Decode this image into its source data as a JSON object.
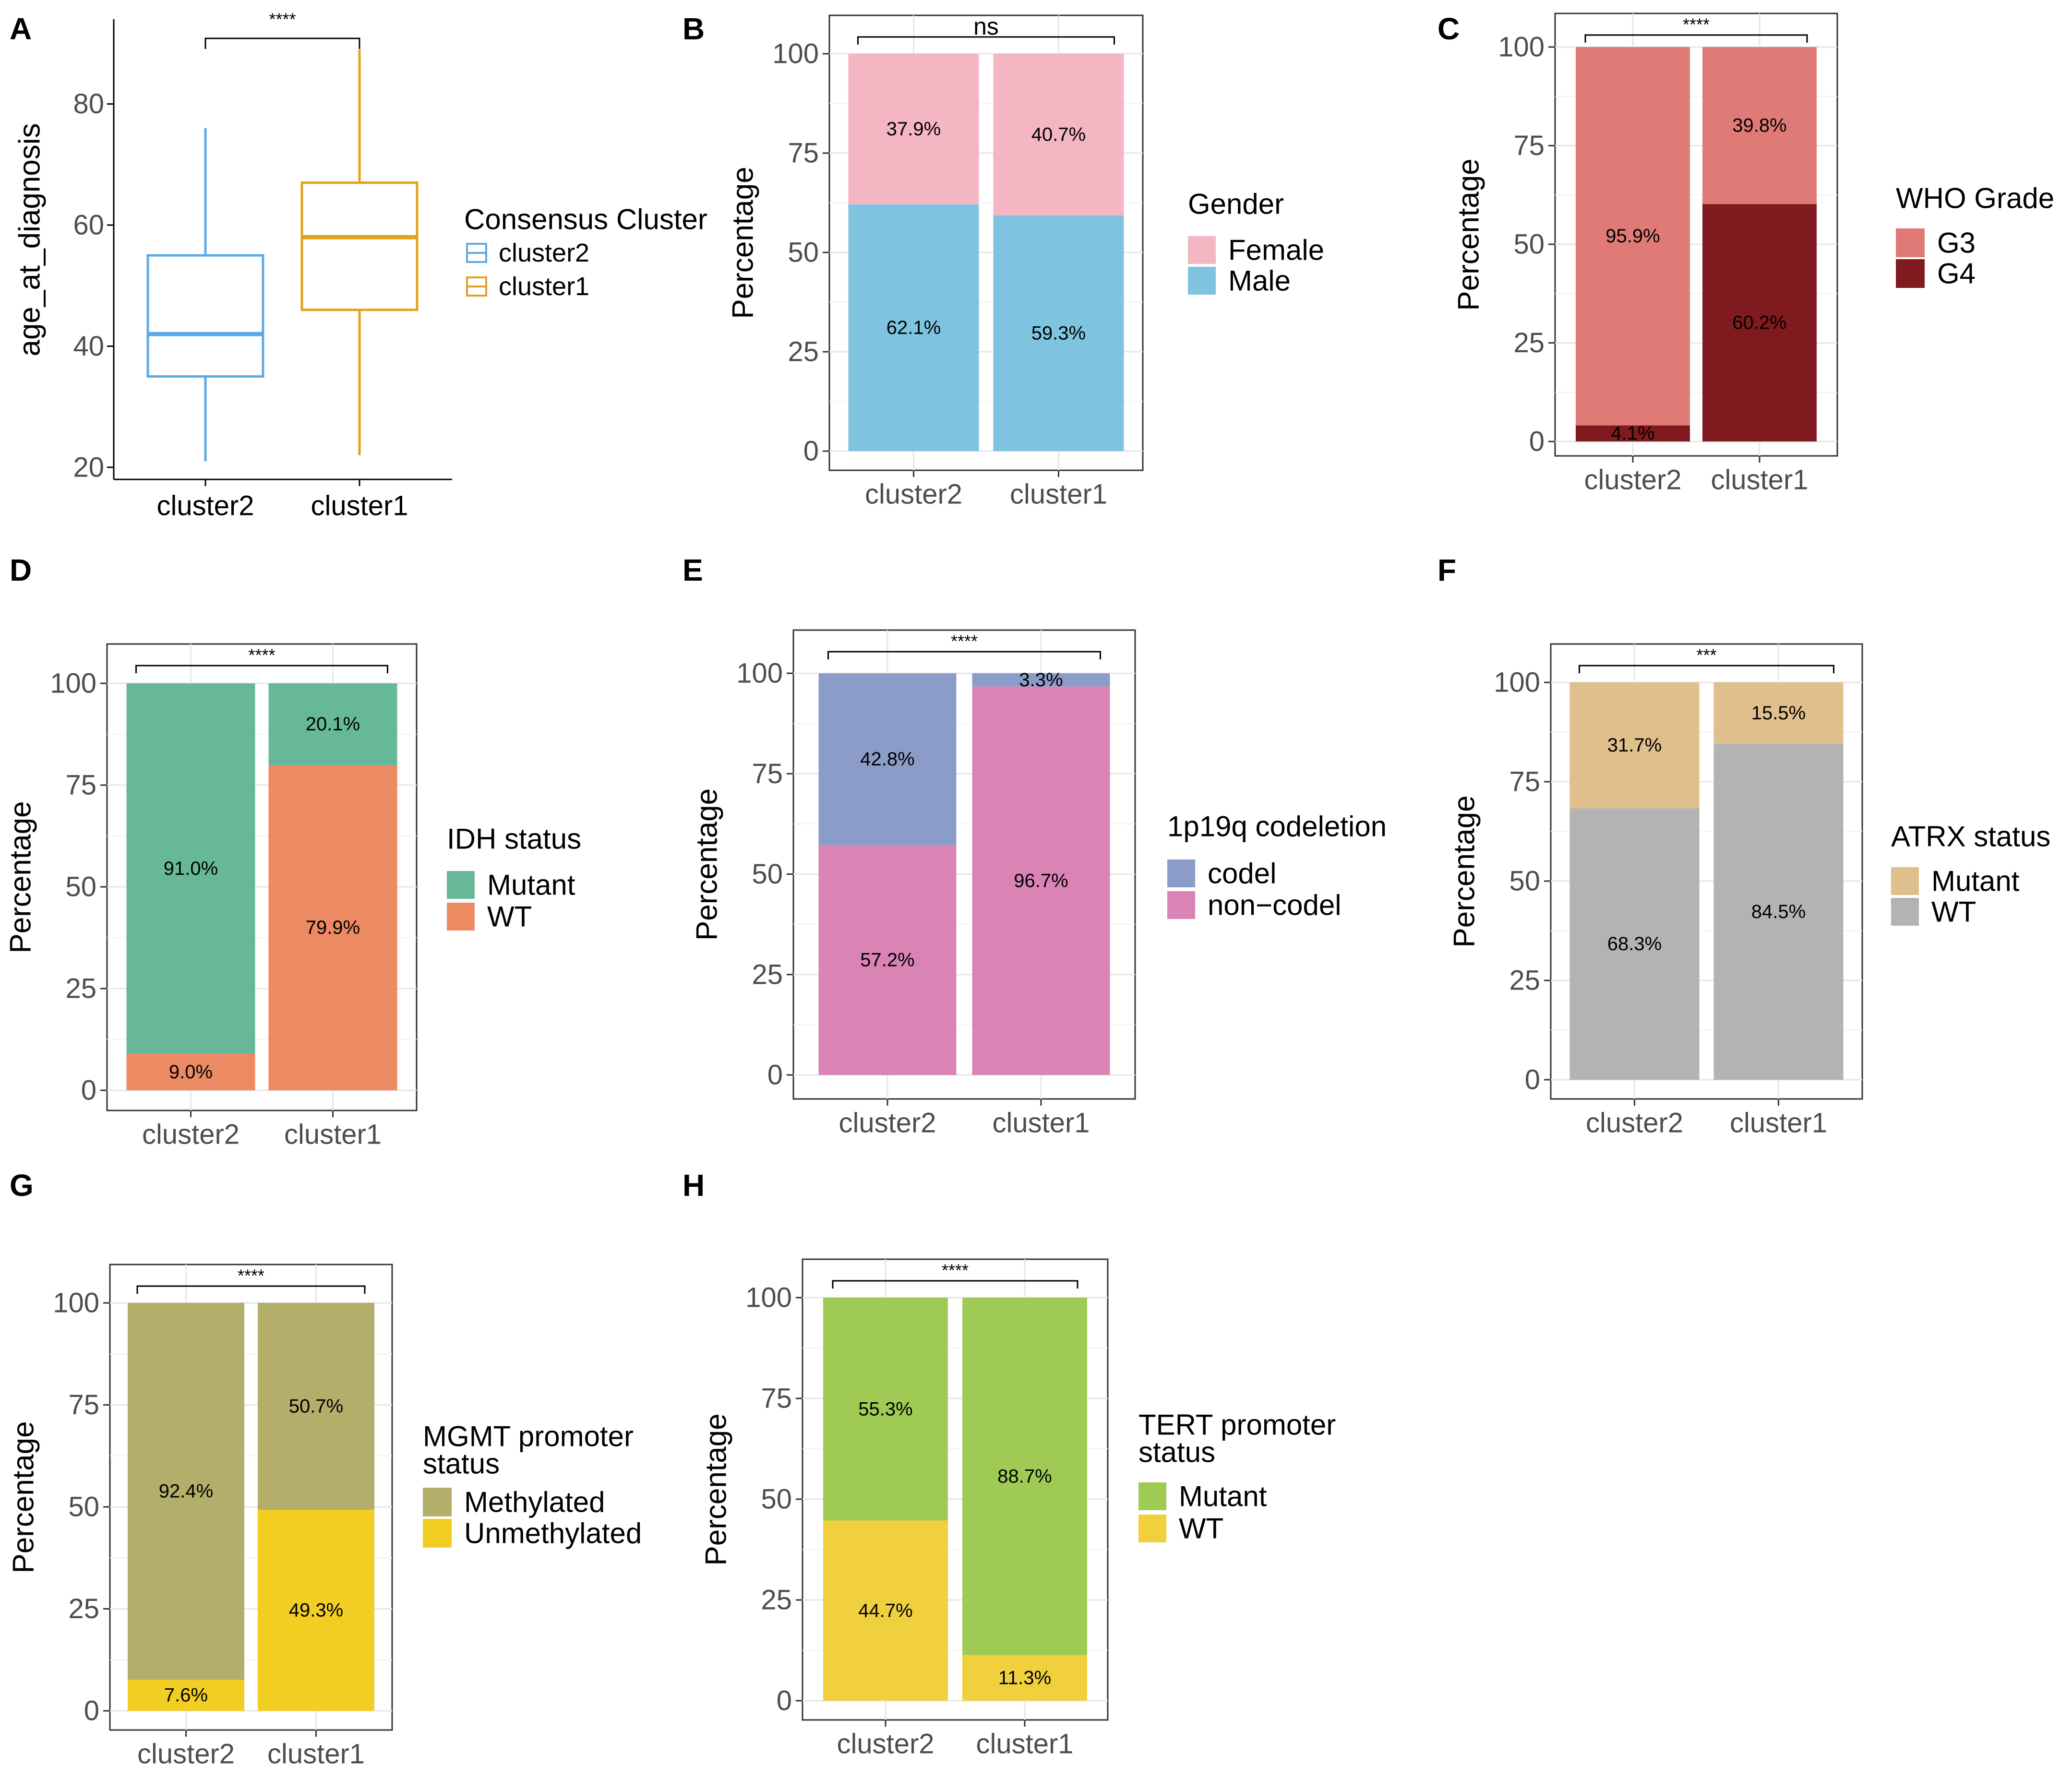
{
  "colors": {
    "cluster2": "#5BAAE3",
    "cluster1": "#E3A01E",
    "Female": "#F4B6C2",
    "Male": "#7EC4E0",
    "G3": "#E07A76",
    "G4": "#811A1E",
    "IDH_Mutant": "#66B899",
    "IDH_WT": "#EC8A63",
    "codel": "#8B9CC8",
    "noncodel": "#DA83B5",
    "ATRX_Mutant": "#DFBF8C",
    "ATRX_WT": "#B3B3B3",
    "Methylated": "#B3AE6A",
    "Unmethylated": "#F2CD22",
    "TERT_Mutant": "#9FCB55",
    "TERT_WT": "#F1D03E"
  },
  "chart_data": [
    {
      "panel": "A",
      "type": "box",
      "categories": [
        "cluster2",
        "cluster1"
      ],
      "ylabel": "age_at_diagnosis",
      "xlabel": "",
      "ylim": [
        18,
        94
      ],
      "yticks": [
        20,
        40,
        60,
        80
      ],
      "boxes": [
        {
          "name": "cluster2",
          "min": 21,
          "q1": 35,
          "median": 42,
          "q3": 55,
          "max": 76,
          "color": "#5BAAE3"
        },
        {
          "name": "cluster1",
          "min": 22,
          "q1": 46,
          "median": 58,
          "q3": 67,
          "max": 89,
          "color": "#E3A01E"
        }
      ],
      "significance": "****",
      "legend_title": "Consensus Cluster",
      "legend": [
        "cluster2",
        "cluster1"
      ]
    },
    {
      "panel": "B",
      "type": "bar",
      "stacked": true,
      "categories": [
        "cluster2",
        "cluster1"
      ],
      "ylabel": "Percentage",
      "ylim": [
        0,
        100
      ],
      "yticks": [
        0,
        25,
        50,
        75,
        100
      ],
      "significance": "ns",
      "legend_title": "Gender",
      "series": [
        {
          "name": "Male",
          "values": [
            62.1,
            59.3
          ],
          "labels": [
            "62.1%",
            "59.3%"
          ],
          "color": "#7EC4E0"
        },
        {
          "name": "Female",
          "values": [
            37.9,
            40.7
          ],
          "labels": [
            "37.9%",
            "40.7%"
          ],
          "color": "#F4B6C2"
        }
      ],
      "legend": [
        {
          "name": "Female",
          "color": "#F4B6C2"
        },
        {
          "name": "Male",
          "color": "#7EC4E0"
        }
      ]
    },
    {
      "panel": "C",
      "type": "bar",
      "stacked": true,
      "categories": [
        "cluster2",
        "cluster1"
      ],
      "ylabel": "Percentage",
      "ylim": [
        0,
        100
      ],
      "yticks": [
        0,
        25,
        50,
        75,
        100
      ],
      "significance": "****",
      "legend_title": "WHO Grade",
      "series": [
        {
          "name": "G4",
          "values": [
            4.1,
            60.2
          ],
          "labels": [
            "4.1%",
            "60.2%"
          ],
          "color": "#811A1E"
        },
        {
          "name": "G3",
          "values": [
            95.9,
            39.8
          ],
          "labels": [
            "95.9%",
            "39.8%"
          ],
          "color": "#E07A76"
        }
      ],
      "legend": [
        {
          "name": "G3",
          "color": "#E07A76"
        },
        {
          "name": "G4",
          "color": "#811A1E"
        }
      ]
    },
    {
      "panel": "D",
      "type": "bar",
      "stacked": true,
      "categories": [
        "cluster2",
        "cluster1"
      ],
      "ylabel": "Percentage",
      "ylim": [
        0,
        100
      ],
      "yticks": [
        0,
        25,
        50,
        75,
        100
      ],
      "significance": "****",
      "legend_title": "IDH status",
      "series": [
        {
          "name": "WT",
          "values": [
            9.0,
            79.9
          ],
          "labels": [
            "9.0%",
            "79.9%"
          ],
          "color": "#EC8A63"
        },
        {
          "name": "Mutant",
          "values": [
            91.0,
            20.1
          ],
          "labels": [
            "91.0%",
            "20.1%"
          ],
          "color": "#66B899"
        }
      ],
      "legend": [
        {
          "name": "Mutant",
          "color": "#66B899"
        },
        {
          "name": "WT",
          "color": "#EC8A63"
        }
      ]
    },
    {
      "panel": "E",
      "type": "bar",
      "stacked": true,
      "categories": [
        "cluster2",
        "cluster1"
      ],
      "ylabel": "Percentage",
      "ylim": [
        0,
        100
      ],
      "yticks": [
        0,
        25,
        50,
        75,
        100
      ],
      "significance": "****",
      "legend_title": "1p19q codeletion",
      "series": [
        {
          "name": "non−codel",
          "values": [
            57.2,
            96.7
          ],
          "labels": [
            "57.2%",
            "96.7%"
          ],
          "color": "#DA83B5"
        },
        {
          "name": "codel",
          "values": [
            42.8,
            3.3
          ],
          "labels": [
            "42.8%",
            "3.3%"
          ],
          "color": "#8B9CC8"
        }
      ],
      "legend": [
        {
          "name": "codel",
          "color": "#8B9CC8"
        },
        {
          "name": "non−codel",
          "color": "#DA83B5"
        }
      ]
    },
    {
      "panel": "F",
      "type": "bar",
      "stacked": true,
      "categories": [
        "cluster2",
        "cluster1"
      ],
      "ylabel": "Percentage",
      "ylim": [
        0,
        100
      ],
      "yticks": [
        0,
        25,
        50,
        75,
        100
      ],
      "significance": "***",
      "legend_title": "ATRX status",
      "series": [
        {
          "name": "WT",
          "values": [
            68.3,
            84.5
          ],
          "labels": [
            "68.3%",
            "84.5%"
          ],
          "color": "#B3B3B3"
        },
        {
          "name": "Mutant",
          "values": [
            31.7,
            15.5
          ],
          "labels": [
            "31.7%",
            "15.5%"
          ],
          "color": "#DFBF8C"
        }
      ],
      "legend": [
        {
          "name": "Mutant",
          "color": "#DFBF8C"
        },
        {
          "name": "WT",
          "color": "#B3B3B3"
        }
      ]
    },
    {
      "panel": "G",
      "type": "bar",
      "stacked": true,
      "categories": [
        "cluster2",
        "cluster1"
      ],
      "ylabel": "Percentage",
      "ylim": [
        0,
        100
      ],
      "yticks": [
        0,
        25,
        50,
        75,
        100
      ],
      "significance": "****",
      "legend_title": [
        "MGMT promoter",
        "status"
      ],
      "series": [
        {
          "name": "Unmethylated",
          "values": [
            7.6,
            49.3
          ],
          "labels": [
            "7.6%",
            "49.3%"
          ],
          "color": "#F2CD22"
        },
        {
          "name": "Methylated",
          "values": [
            92.4,
            50.7
          ],
          "labels": [
            "92.4%",
            "50.7%"
          ],
          "color": "#B3AE6A"
        }
      ],
      "legend": [
        {
          "name": "Methylated",
          "color": "#B3AE6A"
        },
        {
          "name": "Unmethylated",
          "color": "#F2CD22"
        }
      ]
    },
    {
      "panel": "H",
      "type": "bar",
      "stacked": true,
      "categories": [
        "cluster2",
        "cluster1"
      ],
      "ylabel": "Percentage",
      "ylim": [
        0,
        100
      ],
      "yticks": [
        0,
        25,
        50,
        75,
        100
      ],
      "significance": "****",
      "legend_title": [
        "TERT promoter",
        "status"
      ],
      "series": [
        {
          "name": "WT",
          "values": [
            44.7,
            11.3
          ],
          "labels": [
            "44.7%",
            "11.3%"
          ],
          "color": "#F1D03E"
        },
        {
          "name": "Mutant",
          "values": [
            55.3,
            88.7
          ],
          "labels": [
            "55.3%",
            "88.7%"
          ],
          "color": "#9FCB55"
        }
      ],
      "legend": [
        {
          "name": "Mutant",
          "color": "#9FCB55"
        },
        {
          "name": "WT",
          "color": "#F1D03E"
        }
      ]
    }
  ]
}
